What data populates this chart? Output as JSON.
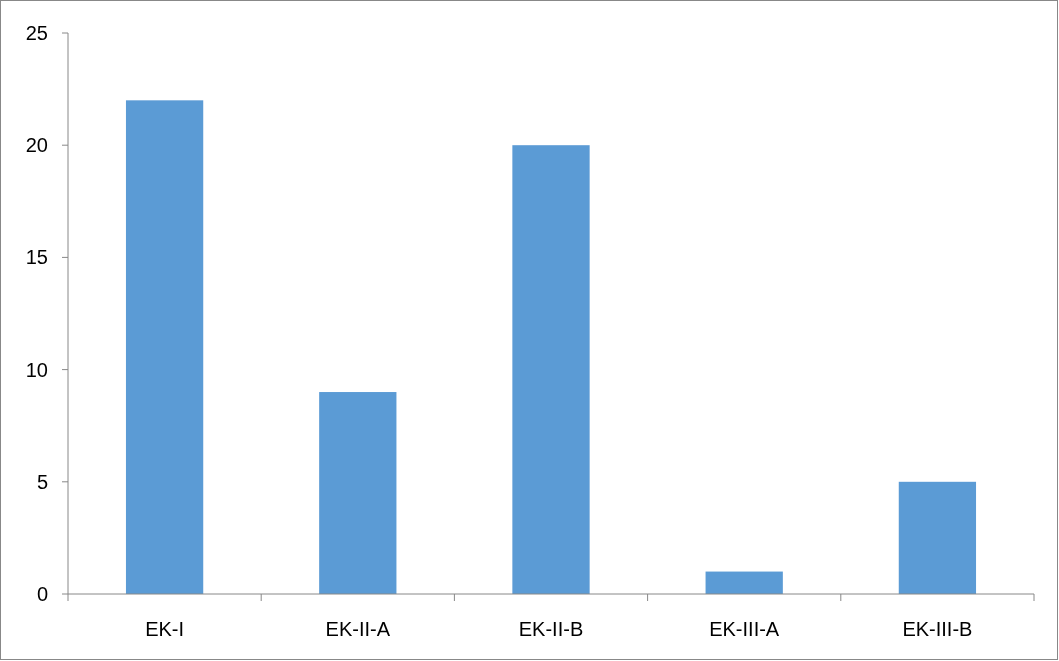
{
  "chart_data": {
    "type": "bar",
    "categories": [
      "EK-I",
      "EK-II-A",
      "EK-II-B",
      "EK-III-A",
      "EK-III-B"
    ],
    "values": [
      22,
      9,
      20,
      1,
      5
    ],
    "color": "#5b9bd5",
    "ylim": [
      0,
      25
    ],
    "yticks": [
      0,
      5,
      10,
      15,
      20,
      25
    ],
    "grid": false
  }
}
